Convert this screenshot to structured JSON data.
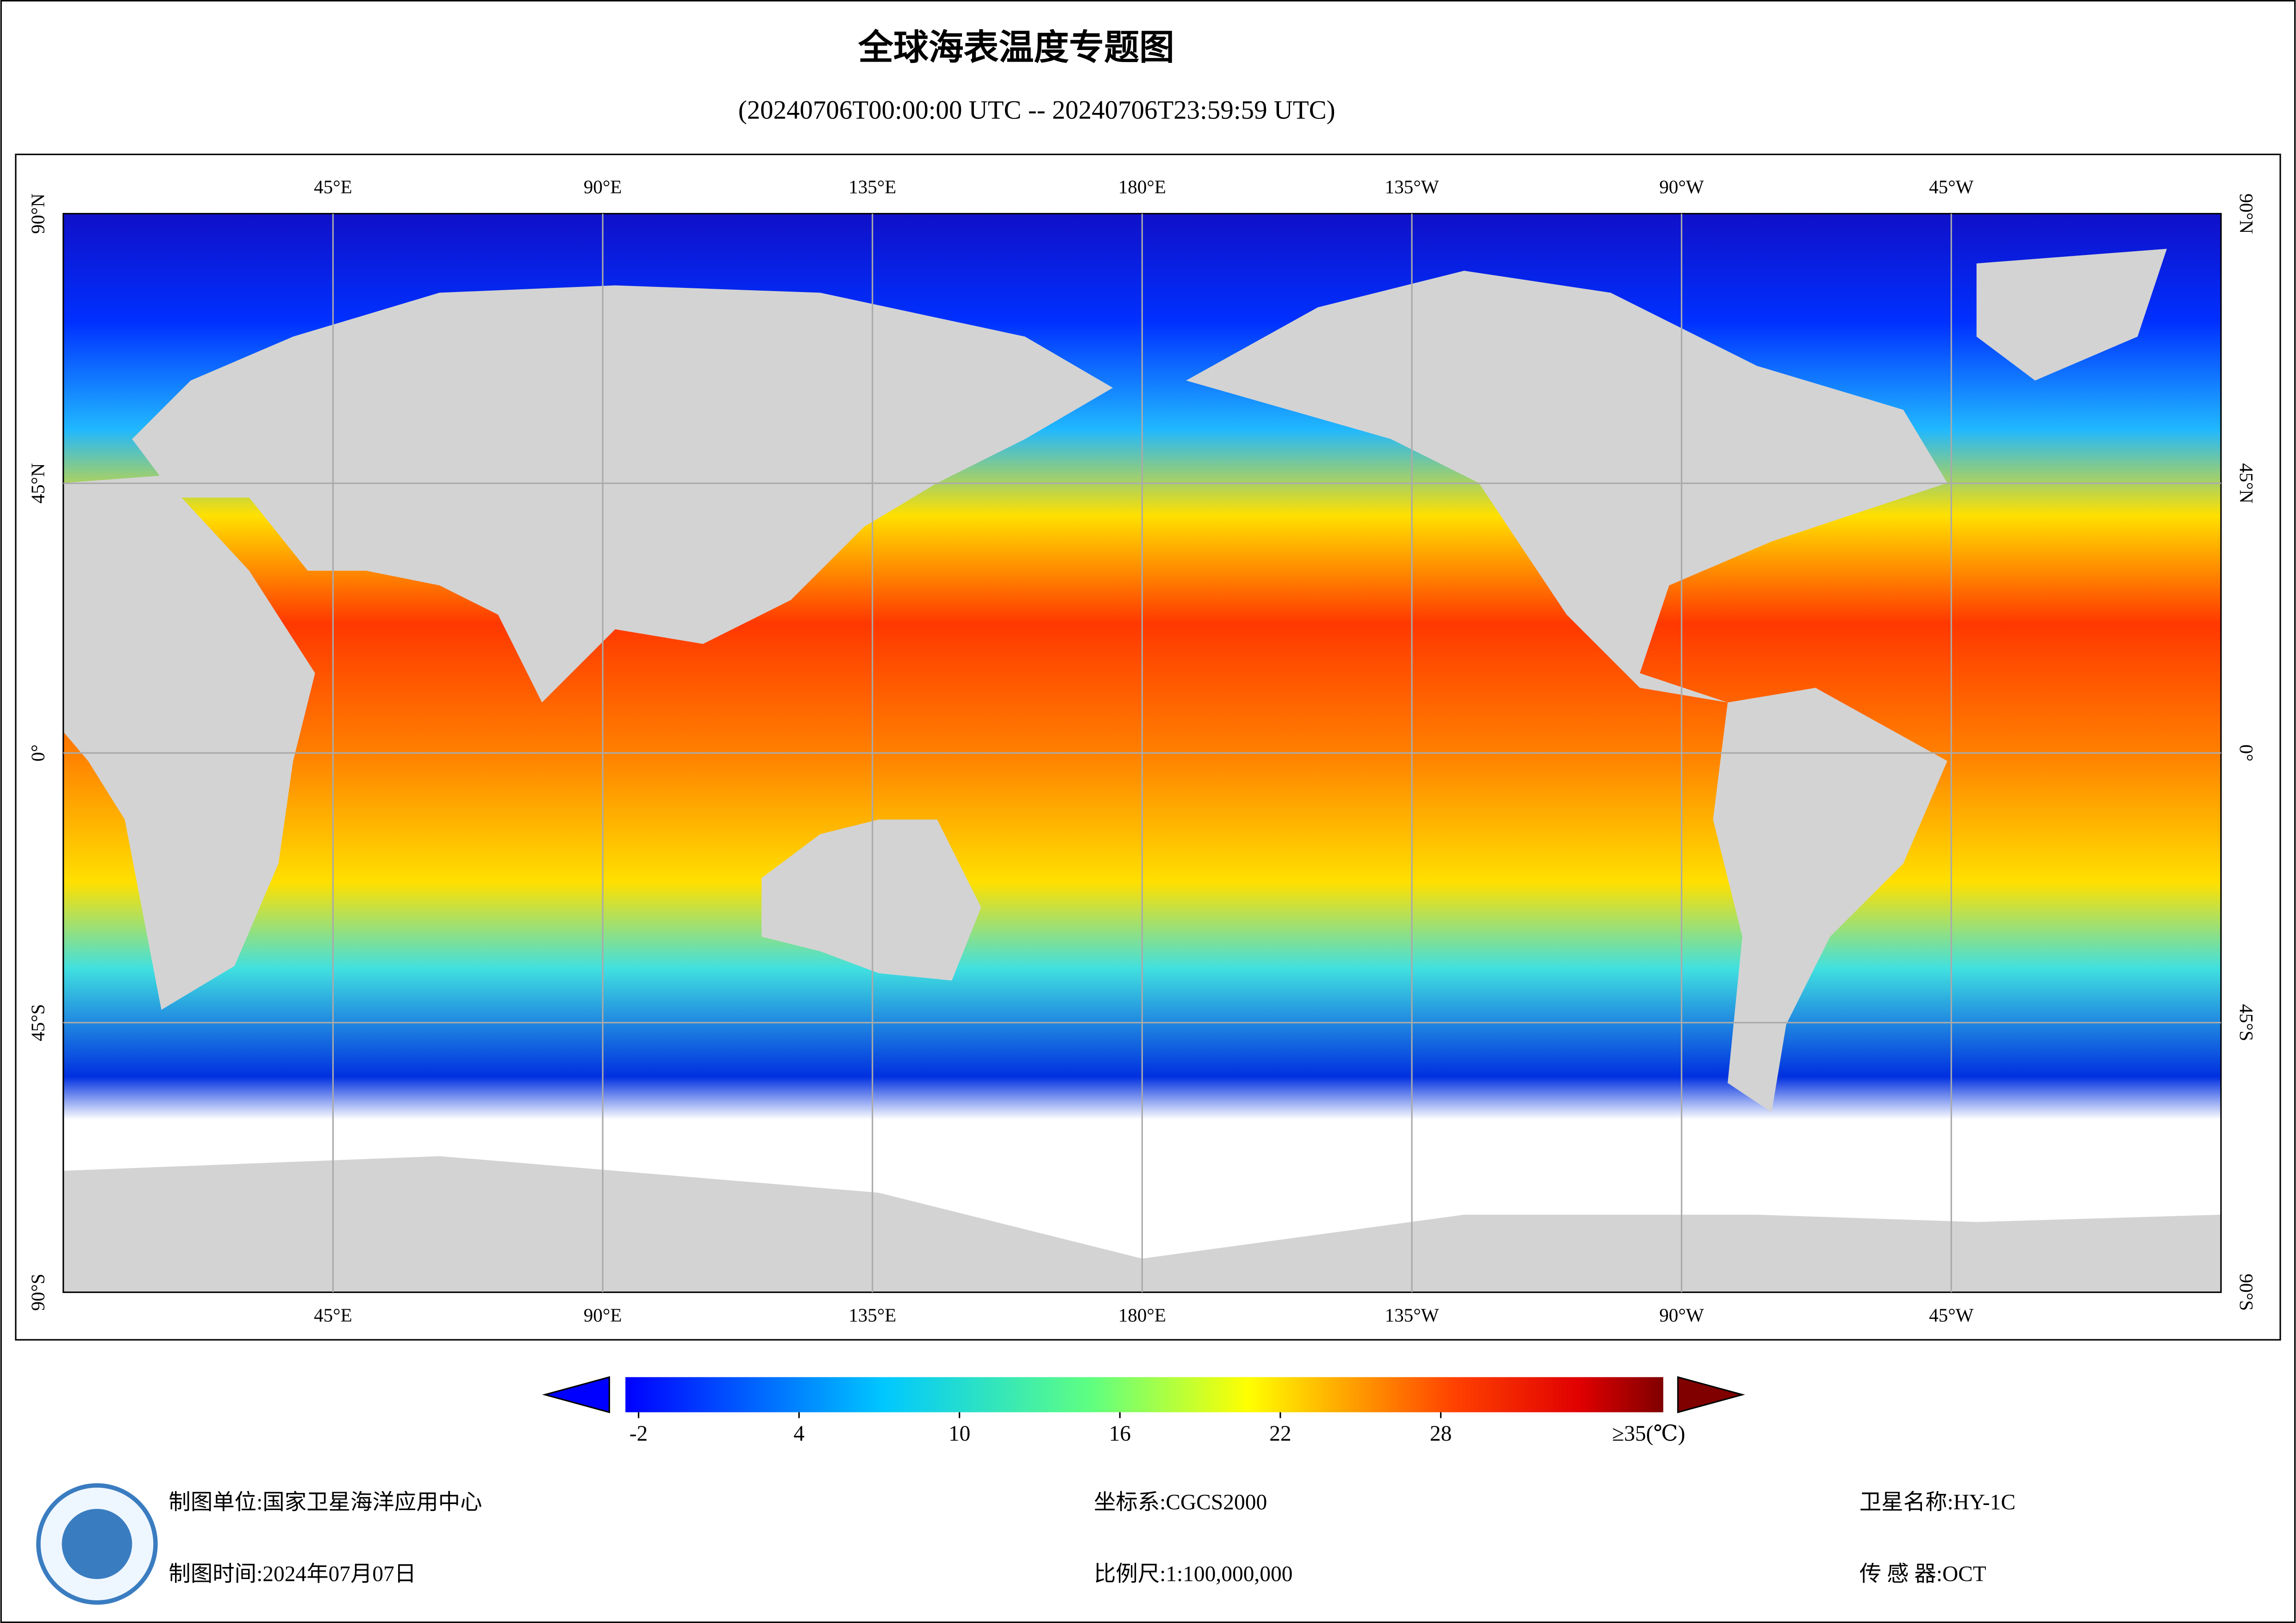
{
  "title": "全球海表温度专题图",
  "subtitle": "(20240706T00:00:00 UTC -- 20240706T23:59:59 UTC)",
  "map": {
    "lon_labels": [
      "45°E",
      "90°E",
      "135°E",
      "180°E",
      "135°W",
      "90°W",
      "45°W"
    ],
    "lat_labels": [
      "90°N",
      "45°N",
      "0°",
      "45°S",
      "90°S"
    ]
  },
  "colorbar": {
    "ticks": [
      -2,
      4,
      10,
      16,
      22,
      28
    ],
    "max_label": "≥35(℃)"
  },
  "footer": {
    "unit": "制图单位:国家卫星海洋应用中心",
    "date": "制图时间:2024年07月07日",
    "crs": "坐标系:CGCS2000",
    "scale": "比例尺:1:100,000,000",
    "satellite": "卫星名称:HY-1C",
    "sensor": "传 感 器:OCT"
  }
}
